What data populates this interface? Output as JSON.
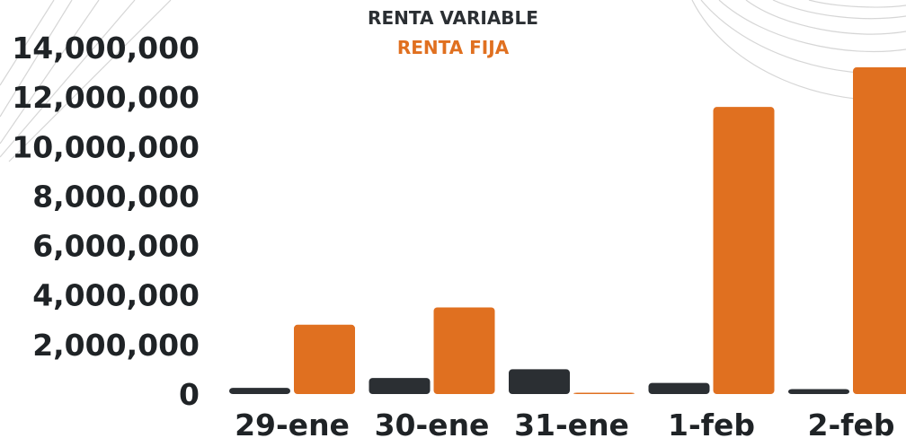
{
  "chart_data": {
    "type": "bar",
    "categories": [
      "29-ene",
      "30-ene",
      "31-ene",
      "1-feb",
      "2-feb"
    ],
    "series": [
      {
        "name": "RENTA VARIABLE",
        "color": "#2b2f33",
        "values": [
          250000,
          650000,
          1000000,
          450000,
          200000
        ]
      },
      {
        "name": "RENTA FIJA",
        "color": "#e07020",
        "values": [
          2800000,
          3500000,
          30000,
          11600000,
          13200000
        ]
      }
    ],
    "yticks": [
      "0",
      "2,000,000",
      "4,000,000",
      "6,000,000",
      "8,000,000",
      "10,000,000",
      "12,000,000",
      "14,000,000"
    ],
    "ylim": [
      0,
      14000000
    ],
    "grid": false,
    "legend_position": "top-center",
    "title": "",
    "xlabel": "",
    "ylabel": ""
  }
}
